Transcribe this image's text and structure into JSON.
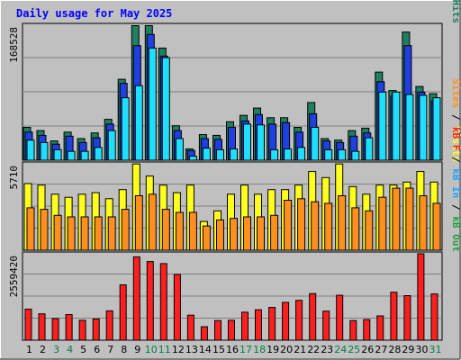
{
  "chart_data": {
    "type": "bar",
    "title": "Daily usage for May 2025",
    "categories": [
      "1",
      "2",
      "3",
      "4",
      "5",
      "6",
      "7",
      "8",
      "9",
      "10",
      "11",
      "12",
      "13",
      "14",
      "15",
      "16",
      "17",
      "18",
      "19",
      "20",
      "21",
      "22",
      "23",
      "24",
      "25",
      "26",
      "27",
      "28",
      "29",
      "30",
      "31"
    ],
    "weekend_days": [
      "3",
      "4",
      "10",
      "11",
      "17",
      "18",
      "24",
      "25",
      "31"
    ],
    "colors": {
      "background": "#c0c0c0",
      "title": "#0000ff",
      "weekday_label": "#000000",
      "weekend_label": "#007f40",
      "hits": "#1f7f5f",
      "files": "#1f3fdf",
      "pages": "#1fdfff",
      "visits": "#ffff1f",
      "sites": "#ff8f1f",
      "kbin": "#1f9fff",
      "kbout": "#1f9f3f",
      "kbf": "#ff1f1f",
      "grid": "#808080",
      "border": "#000000"
    },
    "panels": [
      {
        "name": "hits-files-pages",
        "ymax_label": "168528",
        "ylim": [
          0,
          168528
        ],
        "legend": [
          {
            "text": "Pages",
            "color": "#1fdfff"
          },
          {
            "text": " / ",
            "color": "#000000"
          },
          {
            "text": "Files",
            "color": "#1f3fdf"
          },
          {
            "text": " / ",
            "color": "#000000"
          },
          {
            "text": "Hits",
            "color": "#1f7f5f"
          }
        ],
        "series": [
          {
            "name": "Hits",
            "color": "#1f7f5f",
            "values": [
              41000,
              37000,
              24000,
              35000,
              27000,
              34000,
              51000,
              101000,
              168000,
              168000,
              140000,
              43000,
              14000,
              32000,
              31000,
              48000,
              56000,
              65000,
              53000,
              53000,
              41000,
              72000,
              27000,
              25000,
              37000,
              40000,
              110000,
              87000,
              160000,
              92000,
              83000
            ]
          },
          {
            "name": "Files",
            "color": "#1f3fdf",
            "values": [
              35000,
              31000,
              20000,
              30000,
              22000,
              28000,
              45000,
              96000,
              143000,
              157000,
              130000,
              37000,
              12000,
              27000,
              26000,
              41000,
              49000,
              57000,
              45000,
              47000,
              35000,
              58000,
              24000,
              22000,
              30000,
              34000,
              98000,
              80000,
              143000,
              85000,
              74000
            ]
          },
          {
            "name": "Pages",
            "color": "#1fdfff",
            "values": [
              25000,
              22000,
              13000,
              11000,
              11000,
              16000,
              37000,
              78000,
              93000,
              140000,
              128000,
              27000,
              5000,
              15000,
              13000,
              14000,
              45000,
              44000,
              13000,
              14000,
              16000,
              41000,
              13000,
              13000,
              11000,
              28000,
              85000,
              85000,
              82000,
              81000,
              78000
            ]
          }
        ]
      },
      {
        "name": "visits-sites",
        "ymax_label": "5710",
        "ylim": [
          0,
          5710
        ],
        "legend": [
          {
            "text": "Sites",
            "color": "#ff8f1f"
          },
          {
            "text": " / ",
            "color": "#000000"
          },
          {
            "text": "Visits",
            "color": "#ffff1f"
          }
        ],
        "series": [
          {
            "name": "Visits",
            "color": "#ffff1f",
            "values": [
              4400,
              4300,
              3700,
              3500,
              3700,
              3800,
              3400,
              4000,
              5700,
              4900,
              4300,
              3800,
              4300,
              1900,
              2600,
              3700,
              4300,
              3700,
              4000,
              4000,
              4300,
              5200,
              4800,
              5700,
              4200,
              3700,
              4300,
              4300,
              4500,
              5200,
              4500
            ]
          },
          {
            "name": "Sites",
            "color": "#ff8f1f",
            "values": [
              2800,
              2700,
              2300,
              2200,
              2200,
              2200,
              2200,
              2700,
              3600,
              3700,
              2700,
              2500,
              2500,
              1600,
              2000,
              2100,
              2200,
              2200,
              2300,
              3300,
              3400,
              3200,
              3100,
              3600,
              2800,
              2600,
              3500,
              4100,
              4100,
              3600,
              3100
            ]
          }
        ]
      },
      {
        "name": "kbytes",
        "ymax_label": "2559420",
        "ylim": [
          0,
          2559420
        ],
        "legend": [
          {
            "text": "kB F",
            "color": "#ff1f1f"
          },
          {
            "text": " / ",
            "color": "#000000"
          },
          {
            "text": "kB In",
            "color": "#1f9fff"
          },
          {
            "text": " / ",
            "color": "#000000"
          },
          {
            "text": "kB Out",
            "color": "#1f9f3f"
          }
        ],
        "series": [
          {
            "name": "kB F",
            "color": "#ff1f1f",
            "values": [
              920000,
              780000,
              640000,
              760000,
              590000,
              630000,
              870000,
              1640000,
              2470000,
              2330000,
              2270000,
              1950000,
              740000,
              400000,
              580000,
              590000,
              830000,
              900000,
              970000,
              1120000,
              1180000,
              1380000,
              860000,
              1330000,
              580000,
              610000,
              720000,
              1420000,
              1320000,
              2559420,
              1370000
            ]
          }
        ]
      }
    ]
  }
}
